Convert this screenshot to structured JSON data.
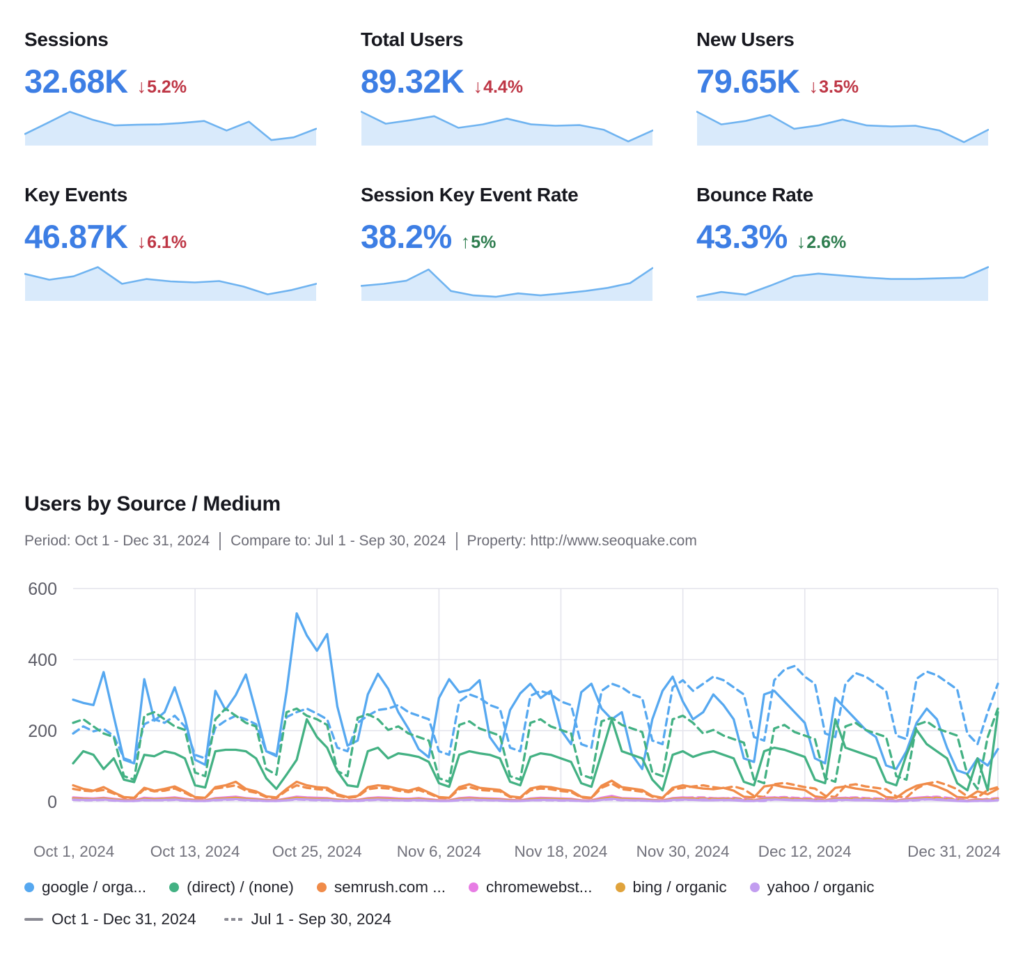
{
  "colors": {
    "value_blue": "#3d7ee4",
    "bad_red": "#be3645",
    "good_green": "#2e7d4f",
    "spark_line": "#6fb3f0",
    "spark_fill": "#d9eafb",
    "grid_line": "#e4e4ec",
    "y_axis_text": "#5c5c66",
    "x_axis_text": "#71717b",
    "legend_text": "#23242c",
    "period_marker_gray": "#8a8a93"
  },
  "kpi_cards": [
    {
      "title": "Sessions",
      "value": "32.68K",
      "delta_arrow": "↓",
      "delta_value": "5.2%",
      "sentiment": "bad",
      "trend": [
        30,
        62,
        95,
        72,
        55,
        57,
        58,
        62,
        68,
        40,
        66,
        12,
        20,
        45
      ]
    },
    {
      "title": "Total Users",
      "value": "89.32K",
      "delta_arrow": "↓",
      "delta_value": "4.4%",
      "sentiment": "bad",
      "trend": [
        95,
        60,
        70,
        82,
        48,
        58,
        75,
        58,
        54,
        56,
        42,
        8,
        40
      ]
    },
    {
      "title": "New Users",
      "value": "79.65K",
      "delta_arrow": "↓",
      "delta_value": "3.5%",
      "sentiment": "bad",
      "trend": [
        95,
        58,
        68,
        85,
        45,
        55,
        72,
        55,
        52,
        54,
        40,
        6,
        42
      ]
    },
    {
      "title": "Key Events",
      "value": "46.87K",
      "delta_arrow": "↓",
      "delta_value": "6.1%",
      "sentiment": "bad",
      "trend": [
        75,
        58,
        68,
        95,
        46,
        60,
        53,
        50,
        54,
        38,
        15,
        28,
        46
      ]
    },
    {
      "title": "Session Key Event Rate",
      "value": "38.2%",
      "delta_arrow": "↑",
      "delta_value": "5%",
      "sentiment": "good",
      "trend": [
        40,
        46,
        55,
        88,
        25,
        12,
        8,
        18,
        12,
        18,
        25,
        34,
        48,
        92
      ]
    },
    {
      "title": "Bounce Rate",
      "value": "43.3%",
      "delta_arrow": "↓",
      "delta_value": "2.6%",
      "sentiment": "good",
      "trend": [
        8,
        22,
        14,
        40,
        68,
        76,
        70,
        64,
        60,
        60,
        62,
        64,
        95
      ]
    }
  ],
  "section": {
    "title": "Users by Source / Medium",
    "period_label": "Period: Oct 1 - Dec 31, 2024",
    "compare_label": "Compare to: Jul 1 - Sep 30, 2024",
    "property_label": "Property: http://www.seoquake.com"
  },
  "chart_data": {
    "type": "line",
    "title": "Users by Source / Medium",
    "xlabel": "",
    "ylabel": "",
    "ylim": [
      0,
      600
    ],
    "y_ticks": [
      0,
      200,
      400,
      600
    ],
    "grid": true,
    "legend_position": "bottom",
    "x_tick_labels": [
      "Oct 1, 2024",
      "Oct 13, 2024",
      "Oct 25, 2024",
      "Nov 6, 2024",
      "Nov 18, 2024",
      "Nov 30, 2024",
      "Dec 12, 2024",
      "Dec 31, 2024"
    ],
    "x_tick_days": [
      0,
      12,
      24,
      36,
      48,
      60,
      72,
      91
    ],
    "periods": [
      {
        "label": "Oct 1 - Dec 31, 2024",
        "style": "solid"
      },
      {
        "label": "Jul 1 - Sep 30, 2024",
        "style": "dashed"
      }
    ],
    "series": [
      {
        "legend_label": "google / orga...",
        "slug": "google-organic",
        "color": "#56a8f0",
        "current": [
          287,
          278,
          272,
          365,
          240,
          118,
          108,
          345,
          228,
          252,
          322,
          235,
          118,
          104,
          312,
          258,
          300,
          358,
          252,
          142,
          128,
          310,
          530,
          468,
          425,
          472,
          268,
          158,
          172,
          302,
          360,
          318,
          252,
          205,
          148,
          125,
          292,
          345,
          308,
          315,
          342,
          182,
          142,
          258,
          305,
          332,
          292,
          312,
          202,
          162,
          308,
          332,
          262,
          232,
          252,
          132,
          92,
          232,
          312,
          352,
          282,
          232,
          252,
          302,
          272,
          232,
          122,
          112,
          302,
          312,
          282,
          252,
          222,
          122,
          108,
          292,
          262,
          232,
          202,
          182,
          102,
          92,
          142,
          222,
          262,
          232,
          152,
          88,
          78,
          122,
          102,
          148
        ],
        "previous": [
          192,
          212,
          198,
          205,
          185,
          122,
          112,
          218,
          232,
          222,
          242,
          212,
          132,
          122,
          208,
          228,
          242,
          232,
          218,
          142,
          132,
          238,
          252,
          262,
          248,
          232,
          152,
          142,
          222,
          242,
          258,
          262,
          272,
          252,
          242,
          232,
          142,
          132,
          282,
          302,
          292,
          272,
          262,
          152,
          142,
          298,
          312,
          302,
          282,
          272,
          162,
          152,
          312,
          332,
          322,
          302,
          292,
          172,
          162,
          322,
          342,
          312,
          332,
          352,
          342,
          322,
          302,
          182,
          172,
          342,
          372,
          382,
          352,
          332,
          192,
          182,
          332,
          362,
          352,
          332,
          312,
          186,
          176,
          346,
          366,
          356,
          336,
          316,
          192,
          162,
          252,
          332
        ]
      },
      {
        "legend_label": "(direct) / (none)",
        "slug": "direct-none",
        "color": "#43b183",
        "current": [
          108,
          142,
          132,
          92,
          122,
          62,
          55,
          132,
          128,
          142,
          136,
          122,
          46,
          40,
          142,
          146,
          146,
          142,
          122,
          66,
          36,
          76,
          118,
          232,
          182,
          152,
          86,
          46,
          42,
          142,
          152,
          122,
          136,
          132,
          126,
          112,
          52,
          42,
          132,
          142,
          136,
          132,
          122,
          56,
          46,
          126,
          136,
          132,
          122,
          112,
          52,
          42,
          136,
          232,
          142,
          132,
          122,
          62,
          32,
          132,
          142,
          126,
          136,
          142,
          132,
          122,
          56,
          46,
          142,
          152,
          146,
          136,
          126,
          62,
          52,
          232,
          152,
          142,
          132,
          122,
          56,
          46,
          132,
          202,
          162,
          142,
          122,
          52,
          32,
          122,
          32,
          252
        ],
        "previous": [
          222,
          232,
          212,
          192,
          182,
          72,
          62,
          242,
          252,
          232,
          212,
          202,
          82,
          72,
          232,
          262,
          242,
          222,
          212,
          92,
          76,
          252,
          262,
          242,
          232,
          216,
          86,
          72,
          236,
          246,
          232,
          202,
          212,
          192,
          182,
          172,
          66,
          56,
          216,
          226,
          206,
          196,
          186,
          72,
          62,
          222,
          232,
          212,
          202,
          192,
          76,
          66,
          226,
          236,
          216,
          206,
          196,
          82,
          72,
          232,
          242,
          222,
          192,
          202,
          186,
          176,
          166,
          62,
          52,
          206,
          216,
          196,
          186,
          176,
          66,
          56,
          212,
          222,
          202,
          192,
          182,
          72,
          62,
          216,
          226,
          206,
          196,
          186,
          76,
          36,
          182,
          262
        ]
      },
      {
        "legend_label": "semrush.com ...",
        "slug": "semrush",
        "color": "#f08b49",
        "current": [
          46,
          36,
          31,
          41,
          26,
          13,
          11,
          39,
          31,
          36,
          43,
          29,
          13,
          11,
          41,
          46,
          56,
          36,
          29,
          15,
          12,
          36,
          56,
          46,
          41,
          39,
          21,
          13,
          16,
          41,
          46,
          43,
          36,
          31,
          39,
          26,
          13,
          11,
          41,
          49,
          39,
          36,
          33,
          15,
          12,
          37,
          43,
          41,
          35,
          31,
          14,
          11,
          45,
          59,
          41,
          37,
          33,
          16,
          11,
          39,
          46,
          41,
          37,
          35,
          39,
          31,
          14,
          12,
          43,
          47,
          41,
          37,
          33,
          15,
          11,
          39,
          43,
          37,
          33,
          29,
          13,
          11,
          31,
          45,
          51,
          43,
          31,
          13,
          11,
          29,
          21,
          36
        ],
        "previous": [
          36,
          31,
          29,
          33,
          23,
          11,
          9,
          35,
          29,
          31,
          37,
          25,
          11,
          10,
          37,
          41,
          46,
          31,
          25,
          13,
          10,
          31,
          46,
          39,
          35,
          33,
          17,
          11,
          14,
          35,
          39,
          37,
          31,
          27,
          33,
          23,
          11,
          10,
          35,
          41,
          33,
          31,
          29,
          13,
          10,
          32,
          37,
          35,
          30,
          27,
          12,
          10,
          39,
          51,
          35,
          32,
          28,
          14,
          10,
          34,
          39,
          43,
          46,
          41,
          37,
          43,
          35,
          16,
          13,
          49,
          53,
          47,
          41,
          37,
          17,
          13,
          45,
          49,
          43,
          39,
          35,
          15,
          12,
          37,
          51,
          56,
          47,
          35,
          15,
          12,
          33,
          41
        ]
      },
      {
        "legend_label": "chromewebst...",
        "slug": "chromewebstore",
        "color": "#e77de4",
        "current": [
          12,
          10,
          9,
          11,
          8,
          5,
          4,
          11,
          9,
          10,
          12,
          8,
          5,
          4,
          10,
          12,
          14,
          10,
          8,
          5,
          4,
          9,
          14,
          12,
          11,
          10,
          6,
          4,
          5,
          10,
          12,
          11,
          9,
          8,
          10,
          7,
          4,
          4,
          10,
          12,
          10,
          9,
          8,
          5,
          4,
          9,
          11,
          10,
          9,
          8,
          4,
          4,
          11,
          16,
          10,
          9,
          8,
          5,
          4,
          10,
          12,
          10,
          9,
          9,
          10,
          8,
          4,
          4,
          11,
          12,
          10,
          9,
          8,
          5,
          4,
          10,
          11,
          9,
          8,
          7,
          4,
          3,
          8,
          11,
          13,
          11,
          8,
          4,
          3,
          7,
          5,
          9
        ],
        "previous": [
          10,
          9,
          8,
          10,
          7,
          4,
          4,
          10,
          8,
          9,
          11,
          7,
          4,
          4,
          9,
          11,
          12,
          9,
          7,
          4,
          4,
          8,
          12,
          11,
          10,
          9,
          5,
          4,
          5,
          9,
          11,
          10,
          8,
          8,
          9,
          7,
          4,
          4,
          9,
          11,
          9,
          8,
          7,
          4,
          4,
          8,
          10,
          9,
          8,
          7,
          4,
          3,
          10,
          14,
          9,
          8,
          7,
          4,
          3,
          9,
          11,
          12,
          12,
          10,
          9,
          11,
          8,
          5,
          4,
          12,
          13,
          11,
          10,
          9,
          5,
          4,
          11,
          12,
          10,
          9,
          8,
          4,
          4,
          9,
          13,
          14,
          11,
          8,
          4,
          4,
          8,
          10
        ]
      },
      {
        "legend_label": "bing / organic",
        "slug": "bing-organic",
        "color": "#e0a33c",
        "current": [
          9,
          8,
          7,
          9,
          6,
          4,
          3,
          8,
          7,
          8,
          9,
          6,
          4,
          3,
          8,
          9,
          11,
          8,
          6,
          4,
          3,
          7,
          11,
          9,
          8,
          8,
          5,
          3,
          4,
          8,
          9,
          8,
          7,
          6,
          8,
          5,
          3,
          3,
          8,
          9,
          8,
          7,
          6,
          4,
          3,
          7,
          8,
          8,
          7,
          6,
          3,
          3,
          8,
          12,
          8,
          7,
          6,
          4,
          3,
          8,
          9,
          8,
          7,
          7,
          8,
          6,
          3,
          3,
          8,
          9,
          8,
          7,
          6,
          4,
          3,
          8,
          8,
          7,
          6,
          5,
          3,
          2,
          6,
          8,
          10,
          8,
          6,
          3,
          2,
          5,
          4,
          7
        ],
        "previous": [
          8,
          7,
          6,
          8,
          5,
          3,
          3,
          7,
          6,
          7,
          8,
          5,
          3,
          3,
          7,
          8,
          9,
          7,
          5,
          3,
          3,
          6,
          9,
          8,
          7,
          7,
          4,
          3,
          4,
          7,
          8,
          7,
          6,
          6,
          7,
          5,
          3,
          3,
          7,
          8,
          7,
          6,
          5,
          3,
          3,
          6,
          7,
          7,
          6,
          5,
          3,
          2,
          8,
          10,
          7,
          6,
          5,
          3,
          2,
          7,
          8,
          9,
          9,
          8,
          7,
          9,
          6,
          4,
          3,
          9,
          10,
          8,
          7,
          6,
          4,
          3,
          8,
          9,
          8,
          7,
          6,
          3,
          3,
          7,
          10,
          11,
          8,
          6,
          3,
          3,
          6,
          8
        ]
      },
      {
        "legend_label": "yahoo / organic",
        "slug": "yahoo-organic",
        "color": "#c29df0",
        "current": [
          6,
          5,
          5,
          6,
          4,
          2,
          2,
          5,
          4,
          5,
          6,
          4,
          2,
          2,
          5,
          6,
          7,
          5,
          4,
          2,
          2,
          4,
          7,
          6,
          5,
          5,
          3,
          2,
          3,
          5,
          6,
          5,
          4,
          4,
          5,
          3,
          2,
          2,
          5,
          6,
          5,
          4,
          4,
          2,
          2,
          4,
          5,
          5,
          4,
          4,
          2,
          2,
          5,
          8,
          5,
          4,
          4,
          2,
          2,
          5,
          6,
          5,
          4,
          4,
          5,
          4,
          2,
          2,
          5,
          6,
          5,
          4,
          4,
          2,
          2,
          5,
          5,
          4,
          4,
          3,
          2,
          1,
          4,
          5,
          7,
          5,
          4,
          2,
          1,
          3,
          2,
          4
        ],
        "previous": [
          5,
          4,
          4,
          5,
          3,
          2,
          2,
          4,
          4,
          4,
          5,
          3,
          2,
          2,
          4,
          5,
          6,
          4,
          3,
          2,
          2,
          4,
          6,
          5,
          4,
          4,
          2,
          2,
          2,
          4,
          5,
          4,
          4,
          3,
          4,
          3,
          2,
          2,
          4,
          5,
          4,
          4,
          3,
          2,
          2,
          4,
          4,
          4,
          3,
          3,
          2,
          1,
          5,
          6,
          4,
          4,
          3,
          2,
          1,
          4,
          5,
          5,
          6,
          5,
          4,
          6,
          4,
          2,
          2,
          6,
          6,
          5,
          4,
          4,
          2,
          2,
          5,
          6,
          5,
          4,
          4,
          2,
          2,
          4,
          6,
          7,
          5,
          4,
          2,
          2,
          4,
          5
        ]
      }
    ]
  }
}
